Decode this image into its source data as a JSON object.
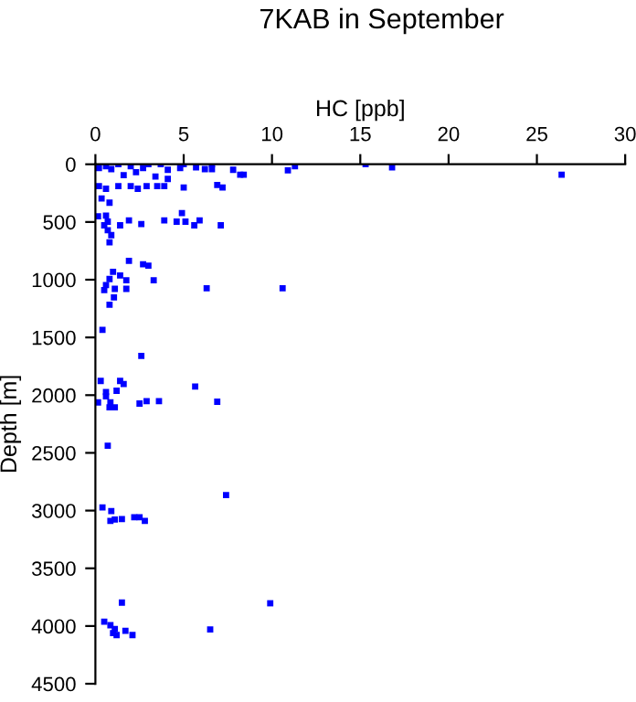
{
  "chart_data": {
    "type": "scatter",
    "title": "7KAB in September",
    "xlabel": "HC [ppb]",
    "ylabel": "Depth [m]",
    "xlim": [
      0,
      30
    ],
    "xticks": [
      0,
      5,
      10,
      15,
      20,
      25,
      30
    ],
    "ylim": [
      4500,
      0
    ],
    "yticks": [
      0,
      500,
      1000,
      1500,
      2000,
      2500,
      3000,
      3500,
      4000,
      4500
    ],
    "grid": false,
    "marker": "square",
    "series": [
      {
        "color": "#0000ff",
        "x": [
          15.3,
          16.8,
          26.4,
          11.3,
          10.9,
          8.4,
          8.2,
          7.8,
          6.6,
          6.6,
          6.2,
          5.7,
          5.0,
          4.8,
          4.1,
          3.7,
          3.4,
          4.1,
          3.0,
          2.7,
          2.0,
          1.3,
          0.6,
          0.2,
          0.9,
          1.6,
          2.3,
          0.2,
          0.6,
          1.3,
          2.0,
          2.4,
          2.9,
          3.5,
          3.9,
          5.0,
          6.9,
          7.2,
          0.35,
          0.8,
          0.15,
          0.6,
          0.7,
          0.5,
          0.7,
          0.9,
          0.8,
          1.4,
          1.9,
          2.6,
          3.9,
          4.6,
          4.9,
          5.1,
          5.6,
          5.9,
          7.1,
          1.9,
          2.7,
          3.0,
          1.0,
          1.4,
          0.8,
          1.75,
          3.3,
          0.6,
          0.5,
          1.1,
          1.75,
          1.05,
          0.8,
          6.3,
          10.6,
          0.4,
          2.6,
          0.3,
          1.4,
          1.6,
          5.65,
          0.6,
          0.6,
          1.2,
          0.15,
          0.85,
          0.8,
          1.1,
          2.5,
          2.9,
          3.6,
          6.9,
          0.7,
          7.4,
          0.4,
          0.9,
          0.85,
          1.1,
          1.5,
          2.2,
          2.5,
          2.8,
          1.5,
          9.9,
          0.5,
          0.85,
          1.1,
          1.0,
          1.2,
          1.7,
          2.1,
          6.5
        ],
        "values": [
          0,
          26,
          90,
          16,
          53,
          90,
          90,
          48,
          0,
          42,
          42,
          26,
          0,
          32,
          48,
          0,
          106,
          127,
          0,
          32,
          16,
          0,
          16,
          32,
          42,
          95,
          69,
          190,
          212,
          190,
          190,
          212,
          190,
          190,
          190,
          201,
          180,
          201,
          296,
          333,
          450,
          444,
          497,
          529,
          571,
          614,
          677,
          529,
          487,
          518,
          487,
          497,
          423,
          497,
          529,
          487,
          529,
          836,
          867,
          878,
          931,
          963,
          994,
          1005,
          1005,
          1047,
          1090,
          1079,
          1079,
          1153,
          1217,
          1074,
          1074,
          1434,
          1660,
          1877,
          1877,
          1904,
          1925,
          1973,
          2010,
          1962,
          2063,
          2063,
          2105,
          2105,
          2073,
          2052,
          2052,
          2057,
          2438,
          2866,
          2972,
          3004,
          3089,
          3078,
          3073,
          3057,
          3057,
          3089,
          3797,
          3803,
          3962,
          3993,
          4025,
          4062,
          4078,
          4041,
          4078,
          4030
        ]
      }
    ]
  }
}
